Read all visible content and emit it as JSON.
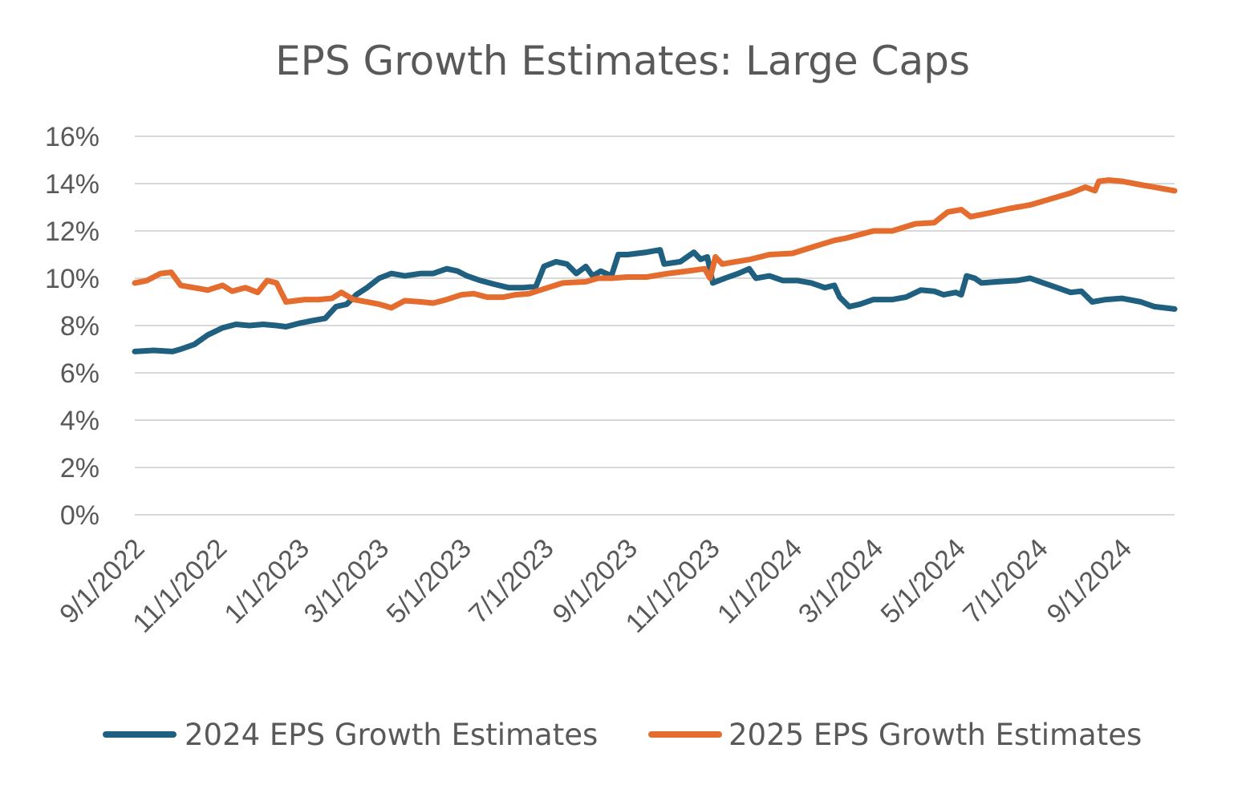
{
  "chart_data": {
    "type": "line",
    "title": "EPS Growth Estimates: Large Caps",
    "xlabel": "",
    "ylabel": "",
    "x_tick_labels": [
      "9/1/2022",
      "11/1/2022",
      "1/1/2023",
      "3/1/2023",
      "5/1/2023",
      "7/1/2023",
      "9/1/2023",
      "11/1/2023",
      "1/1/2024",
      "3/1/2024",
      "5/1/2024",
      "7/1/2024",
      "9/1/2024"
    ],
    "x_range": [
      "2022-09-01",
      "2024-10-10"
    ],
    "y_tick_labels": [
      "0%",
      "2%",
      "4%",
      "6%",
      "8%",
      "10%",
      "12%",
      "14%",
      "16%"
    ],
    "ylim": [
      0,
      16
    ],
    "grid": true,
    "legend_position": "bottom",
    "series": [
      {
        "name": "2024 EPS Growth Estimates",
        "color": "#1f5f7f",
        "points": [
          [
            "2022-09-01",
            6.9
          ],
          [
            "2022-09-15",
            6.95
          ],
          [
            "2022-09-29",
            6.9
          ],
          [
            "2022-10-05",
            7.0
          ],
          [
            "2022-10-15",
            7.2
          ],
          [
            "2022-10-25",
            7.6
          ],
          [
            "2022-11-05",
            7.9
          ],
          [
            "2022-11-15",
            8.05
          ],
          [
            "2022-11-25",
            8.0
          ],
          [
            "2022-12-05",
            8.05
          ],
          [
            "2022-12-15",
            8.0
          ],
          [
            "2022-12-22",
            7.95
          ],
          [
            "2023-01-01",
            8.1
          ],
          [
            "2023-01-10",
            8.2
          ],
          [
            "2023-01-20",
            8.3
          ],
          [
            "2023-01-28",
            8.8
          ],
          [
            "2023-02-05",
            8.9
          ],
          [
            "2023-02-12",
            9.3
          ],
          [
            "2023-02-20",
            9.6
          ],
          [
            "2023-03-01",
            10.0
          ],
          [
            "2023-03-10",
            10.2
          ],
          [
            "2023-03-20",
            10.1
          ],
          [
            "2023-04-01",
            10.2
          ],
          [
            "2023-04-10",
            10.2
          ],
          [
            "2023-04-20",
            10.4
          ],
          [
            "2023-04-28",
            10.3
          ],
          [
            "2023-05-05",
            10.1
          ],
          [
            "2023-05-15",
            9.9
          ],
          [
            "2023-05-25",
            9.75
          ],
          [
            "2023-06-05",
            9.6
          ],
          [
            "2023-06-15",
            9.6
          ],
          [
            "2023-06-25",
            9.65
          ],
          [
            "2023-07-01",
            10.5
          ],
          [
            "2023-07-10",
            10.7
          ],
          [
            "2023-07-18",
            10.6
          ],
          [
            "2023-07-25",
            10.2
          ],
          [
            "2023-08-01",
            10.5
          ],
          [
            "2023-08-06",
            10.1
          ],
          [
            "2023-08-12",
            10.3
          ],
          [
            "2023-08-20",
            10.1
          ],
          [
            "2023-08-25",
            11.0
          ],
          [
            "2023-09-01",
            11.0
          ],
          [
            "2023-09-15",
            11.1
          ],
          [
            "2023-09-25",
            11.2
          ],
          [
            "2023-09-28",
            10.6
          ],
          [
            "2023-10-10",
            10.7
          ],
          [
            "2023-10-20",
            11.1
          ],
          [
            "2023-10-25",
            10.8
          ],
          [
            "2023-10-30",
            10.9
          ],
          [
            "2023-11-03",
            9.8
          ],
          [
            "2023-11-12",
            10.0
          ],
          [
            "2023-11-22",
            10.2
          ],
          [
            "2023-11-30",
            10.4
          ],
          [
            "2023-12-05",
            10.0
          ],
          [
            "2023-12-15",
            10.1
          ],
          [
            "2023-12-25",
            9.9
          ],
          [
            "2024-01-05",
            9.9
          ],
          [
            "2024-01-15",
            9.8
          ],
          [
            "2024-01-25",
            9.6
          ],
          [
            "2024-02-01",
            9.7
          ],
          [
            "2024-02-05",
            9.2
          ],
          [
            "2024-02-12",
            8.8
          ],
          [
            "2024-02-20",
            8.9
          ],
          [
            "2024-03-01",
            9.1
          ],
          [
            "2024-03-15",
            9.1
          ],
          [
            "2024-03-25",
            9.2
          ],
          [
            "2024-04-05",
            9.5
          ],
          [
            "2024-04-15",
            9.45
          ],
          [
            "2024-04-22",
            9.3
          ],
          [
            "2024-05-01",
            9.4
          ],
          [
            "2024-05-05",
            9.3
          ],
          [
            "2024-05-09",
            10.1
          ],
          [
            "2024-05-15",
            10.0
          ],
          [
            "2024-05-20",
            9.8
          ],
          [
            "2024-06-01",
            9.85
          ],
          [
            "2024-06-15",
            9.9
          ],
          [
            "2024-06-25",
            10.0
          ],
          [
            "2024-07-05",
            9.8
          ],
          [
            "2024-07-15",
            9.6
          ],
          [
            "2024-07-25",
            9.4
          ],
          [
            "2024-08-02",
            9.45
          ],
          [
            "2024-08-10",
            9.0
          ],
          [
            "2024-08-20",
            9.1
          ],
          [
            "2024-09-01",
            9.15
          ],
          [
            "2024-09-15",
            9.0
          ],
          [
            "2024-09-25",
            8.8
          ],
          [
            "2024-10-10",
            8.7
          ]
        ]
      },
      {
        "name": "2025 EPS Growth Estimates",
        "color": "#e46c2e",
        "points": [
          [
            "2022-09-01",
            9.8
          ],
          [
            "2022-09-10",
            9.9
          ],
          [
            "2022-09-20",
            10.2
          ],
          [
            "2022-09-28",
            10.25
          ],
          [
            "2022-10-05",
            9.7
          ],
          [
            "2022-10-15",
            9.6
          ],
          [
            "2022-10-25",
            9.5
          ],
          [
            "2022-11-05",
            9.7
          ],
          [
            "2022-11-12",
            9.45
          ],
          [
            "2022-11-22",
            9.6
          ],
          [
            "2022-12-01",
            9.4
          ],
          [
            "2022-12-08",
            9.9
          ],
          [
            "2022-12-15",
            9.8
          ],
          [
            "2022-12-22",
            9.0
          ],
          [
            "2023-01-05",
            9.1
          ],
          [
            "2023-01-15",
            9.1
          ],
          [
            "2023-01-25",
            9.15
          ],
          [
            "2023-02-01",
            9.4
          ],
          [
            "2023-02-10",
            9.1
          ],
          [
            "2023-02-20",
            9.0
          ],
          [
            "2023-03-01",
            8.9
          ],
          [
            "2023-03-10",
            8.75
          ],
          [
            "2023-03-20",
            9.05
          ],
          [
            "2023-04-01",
            9.0
          ],
          [
            "2023-04-10",
            8.95
          ],
          [
            "2023-04-20",
            9.1
          ],
          [
            "2023-05-01",
            9.3
          ],
          [
            "2023-05-10",
            9.35
          ],
          [
            "2023-05-20",
            9.2
          ],
          [
            "2023-06-01",
            9.2
          ],
          [
            "2023-06-10",
            9.3
          ],
          [
            "2023-06-20",
            9.35
          ],
          [
            "2023-07-01",
            9.55
          ],
          [
            "2023-07-15",
            9.8
          ],
          [
            "2023-08-01",
            9.85
          ],
          [
            "2023-08-10",
            10.0
          ],
          [
            "2023-08-20",
            10.0
          ],
          [
            "2023-09-01",
            10.05
          ],
          [
            "2023-09-15",
            10.05
          ],
          [
            "2023-10-01",
            10.2
          ],
          [
            "2023-10-15",
            10.3
          ],
          [
            "2023-10-28",
            10.4
          ],
          [
            "2023-11-01",
            10.0
          ],
          [
            "2023-11-05",
            10.9
          ],
          [
            "2023-11-10",
            10.6
          ],
          [
            "2023-11-20",
            10.7
          ],
          [
            "2023-12-01",
            10.8
          ],
          [
            "2023-12-15",
            11.0
          ],
          [
            "2024-01-01",
            11.05
          ],
          [
            "2024-01-15",
            11.3
          ],
          [
            "2024-02-01",
            11.6
          ],
          [
            "2024-02-10",
            11.7
          ],
          [
            "2024-03-01",
            12.0
          ],
          [
            "2024-03-15",
            12.0
          ],
          [
            "2024-04-01",
            12.3
          ],
          [
            "2024-04-15",
            12.35
          ],
          [
            "2024-04-25",
            12.8
          ],
          [
            "2024-05-05",
            12.9
          ],
          [
            "2024-05-12",
            12.6
          ],
          [
            "2024-05-25",
            12.75
          ],
          [
            "2024-06-10",
            12.95
          ],
          [
            "2024-06-25",
            13.1
          ],
          [
            "2024-07-10",
            13.35
          ],
          [
            "2024-07-25",
            13.6
          ],
          [
            "2024-08-05",
            13.85
          ],
          [
            "2024-08-12",
            13.7
          ],
          [
            "2024-08-15",
            14.1
          ],
          [
            "2024-08-22",
            14.15
          ],
          [
            "2024-09-01",
            14.1
          ],
          [
            "2024-09-15",
            13.95
          ],
          [
            "2024-09-25",
            13.85
          ],
          [
            "2024-10-10",
            13.7
          ]
        ]
      }
    ]
  }
}
